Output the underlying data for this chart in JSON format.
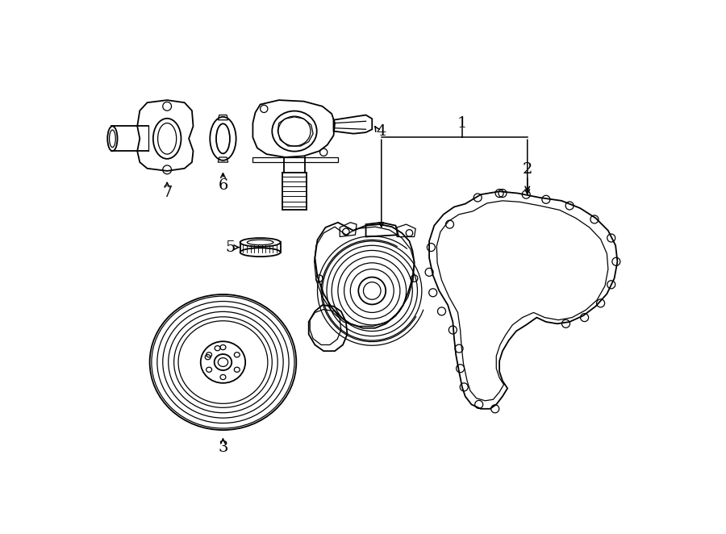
{
  "background_color": "#ffffff",
  "line_color": "#000000",
  "figsize": [
    9.0,
    6.62
  ],
  "dpi": 100
}
